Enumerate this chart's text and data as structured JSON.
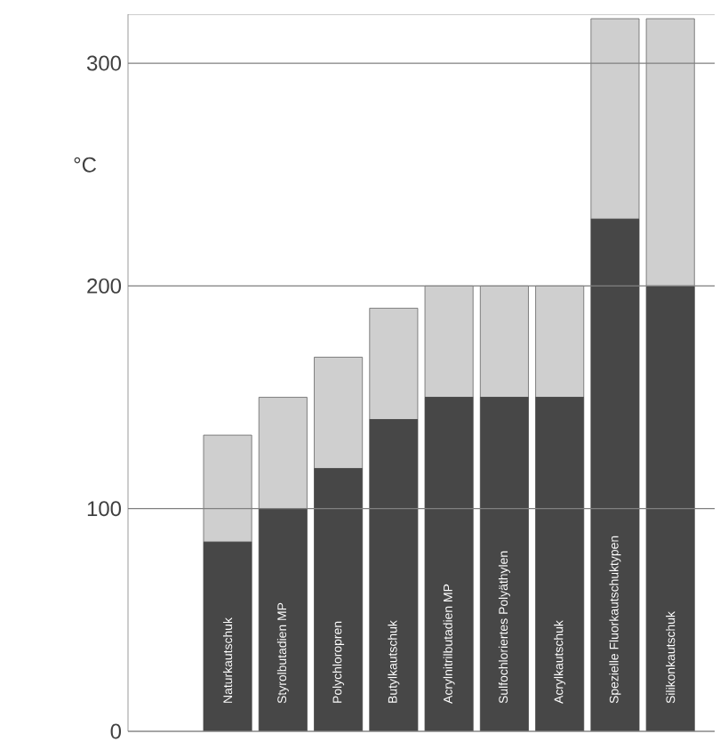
{
  "chart_data": {
    "type": "bar",
    "stacked": true,
    "ylabel": "°C",
    "categories": [
      "Naturkautschuk",
      "Styrolbutadien MP",
      "Polychloropren",
      "Butylkautschuk",
      "Acrylnitrilbutadien MP",
      "Sulfochloriertes Polyäthylen",
      "Acrylkautschuk",
      "Spezielle Fluorkautschuktypen",
      "Silikonkautschuk"
    ],
    "series": [
      {
        "color": "#474747",
        "values": [
          85,
          100,
          118,
          140,
          150,
          150,
          150,
          230,
          200
        ]
      },
      {
        "color": "#cfcfcf",
        "values": [
          48,
          50,
          50,
          50,
          50,
          50,
          50,
          90,
          120
        ]
      }
    ],
    "ylim": [
      0,
      322
    ],
    "yticks": [
      0,
      100,
      200,
      300
    ],
    "grid": "y"
  }
}
